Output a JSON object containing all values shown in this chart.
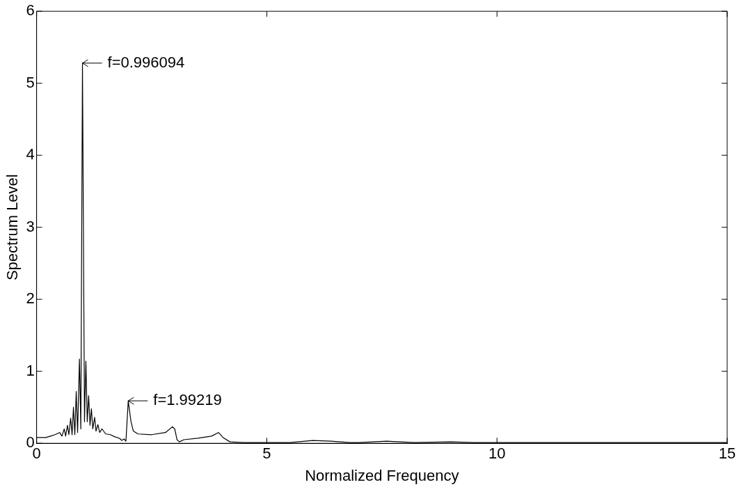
{
  "chart_data": {
    "type": "line",
    "xlabel": "Normalized Frequency",
    "ylabel": "Spectrum Level",
    "x": [
      0,
      0.2,
      0.3,
      0.4,
      0.5,
      0.55,
      0.6,
      0.63,
      0.67,
      0.7,
      0.74,
      0.77,
      0.8,
      0.83,
      0.86,
      0.89,
      0.93,
      0.96,
      0.996,
      1.04,
      1.07,
      1.1,
      1.13,
      1.16,
      1.19,
      1.22,
      1.26,
      1.29,
      1.33,
      1.37,
      1.42,
      1.5,
      1.6,
      1.7,
      1.8,
      1.85,
      1.9,
      1.94,
      1.99,
      2.05,
      2.1,
      2.2,
      2.5,
      2.8,
      2.95,
      3.0,
      3.05,
      3.1,
      3.2,
      3.5,
      3.8,
      3.95,
      4.05,
      4.2,
      4.5,
      5.5,
      6.0,
      6.4,
      6.8,
      7.0,
      7.6,
      8.2,
      9,
      9.5,
      10,
      12,
      15
    ],
    "series": [
      {
        "color": "#000000",
        "values": [
          0.08,
          0.08,
          0.1,
          0.12,
          0.15,
          0.1,
          0.2,
          0.1,
          0.25,
          0.12,
          0.35,
          0.12,
          0.5,
          0.12,
          0.72,
          0.15,
          1.17,
          0.2,
          5.28,
          0.3,
          1.14,
          0.3,
          0.66,
          0.25,
          0.48,
          0.2,
          0.36,
          0.17,
          0.26,
          0.15,
          0.2,
          0.13,
          0.12,
          0.09,
          0.07,
          0.04,
          0.06,
          0.03,
          0.59,
          0.3,
          0.17,
          0.13,
          0.12,
          0.15,
          0.23,
          0.2,
          0.05,
          0.02,
          0.05,
          0.07,
          0.1,
          0.15,
          0.08,
          0.02,
          0.01,
          0.01,
          0.04,
          0.03,
          0.01,
          0.01,
          0.03,
          0.01,
          0.02,
          0.01,
          0.01,
          0.01,
          0.01
        ]
      }
    ],
    "xlim": [
      0,
      15
    ],
    "xticks": [
      0,
      5,
      10,
      15
    ],
    "ylim": [
      0,
      6
    ],
    "yticks": [
      0,
      1,
      2,
      3,
      4,
      5,
      6
    ],
    "grid": false,
    "legend": false,
    "marker": "none",
    "line_style": "solid",
    "annotations": [
      {
        "text": "f=0.996094",
        "x": 0.996,
        "y": 5.28
      },
      {
        "text": "f=1.99219",
        "x": 1.99,
        "y": 0.59
      }
    ]
  }
}
